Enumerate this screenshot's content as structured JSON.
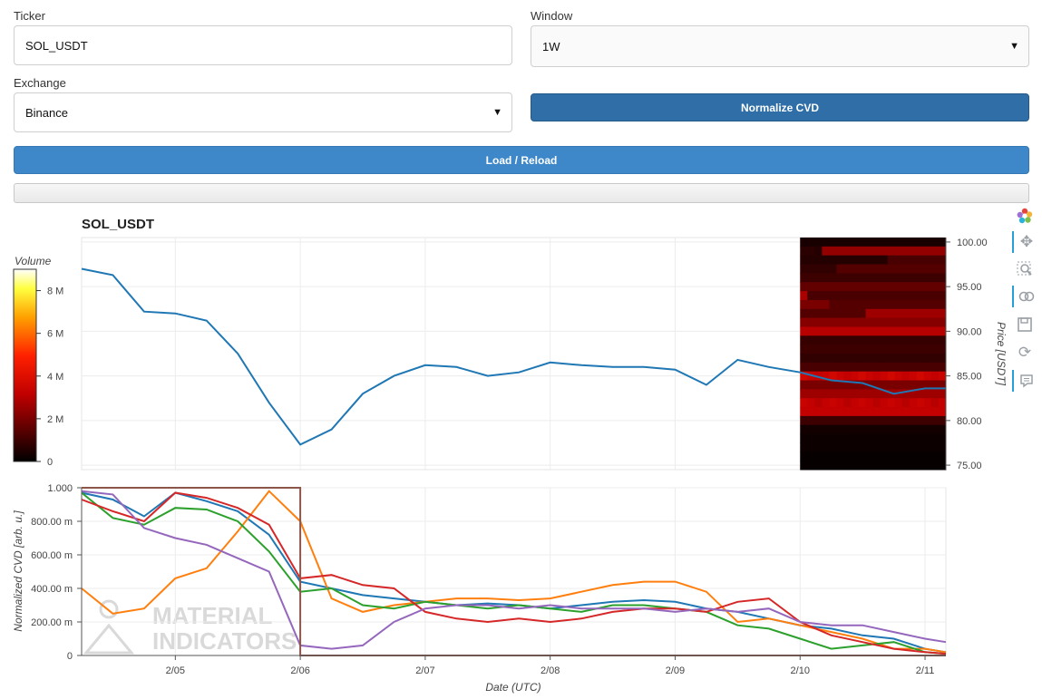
{
  "form": {
    "ticker_label": "Ticker",
    "ticker_value": "SOL_USDT",
    "window_label": "Window",
    "window_value": "1W",
    "exchange_label": "Exchange",
    "exchange_value": "Binance",
    "normalize_label": "Normalize CVD",
    "load_label": "Load / Reload"
  },
  "toolbar": {
    "tools": [
      "logo-icon",
      "pan-icon",
      "box-zoom-icon",
      "wheel-zoom-icon",
      "save-icon",
      "reset-icon",
      "hover-icon"
    ]
  },
  "colors": {
    "price_line": "#1f77b4",
    "cvd_series": [
      "#1f77b4",
      "#ff7f0e",
      "#2ca02c",
      "#d62728",
      "#9467bd",
      "#8c564b"
    ],
    "button_dark": "#2f6ea6",
    "button_light": "#3e88c9"
  },
  "watermark": {
    "line1": "MATERIAL",
    "line2": "INDICATORS"
  },
  "chart_data": [
    {
      "type": "line",
      "title": "SOL_USDT",
      "ylabel": "Price [USDT]",
      "ylim": [
        74.5,
        100.5
      ],
      "yticks": [
        "100.00",
        "95.00",
        "90.00",
        "85.00",
        "80.00",
        "75.00"
      ],
      "grid": true,
      "x": [
        "2/04 06:00",
        "2/04 12:00",
        "2/04 18:00",
        "2/05 00:00",
        "2/05 06:00",
        "2/05 12:00",
        "2/05 18:00",
        "2/06 00:00",
        "2/06 06:00",
        "2/06 12:00",
        "2/06 18:00",
        "2/07 00:00",
        "2/07 06:00",
        "2/07 12:00",
        "2/07 18:00",
        "2/08 00:00",
        "2/08 06:00",
        "2/08 12:00",
        "2/08 18:00",
        "2/09 00:00",
        "2/09 06:00",
        "2/09 12:00",
        "2/09 18:00",
        "2/10 00:00",
        "2/10 06:00",
        "2/10 12:00",
        "2/10 18:00",
        "2/11 00:00",
        "2/11 04:00"
      ],
      "series": [
        {
          "values": [
            97.0,
            96.3,
            92.2,
            92.0,
            91.2,
            87.5,
            82.0,
            77.3,
            79.0,
            83.0,
            85.0,
            86.2,
            86.0,
            85.0,
            85.4,
            86.5,
            86.2,
            86.0,
            86.0,
            85.7,
            84.0,
            86.8,
            86.0,
            85.4,
            84.5,
            84.2,
            83.0,
            83.6,
            83.6
          ]
        }
      ],
      "heatmap": {
        "colorbar_label": "Volume",
        "colorbar_ticks": [
          "8 M",
          "6 M",
          "4 M",
          "2 M",
          "0"
        ],
        "colorbar_range": [
          0,
          9
        ],
        "time_start": "2/10 00:00",
        "time_end": "2/11 04:00",
        "price_low": 74.5,
        "price_high": 100.5,
        "price_bin": 1.0,
        "time_bins": 20,
        "volumes": [
          [
            0.4,
            0.4,
            0.4,
            0.4,
            0.4,
            0.4,
            0.4,
            0.4,
            0.4,
            0.4,
            0.4,
            0.4,
            0.4,
            0.4,
            0.4,
            0.4,
            0.4,
            0.4,
            0.4,
            0.4
          ],
          [
            0.7,
            0.7,
            0.6,
            2.4,
            2.4,
            2.4,
            2.4,
            2.4,
            2.4,
            2.4,
            2.4,
            2.4,
            2.4,
            2.4,
            2.4,
            2.4,
            2.4,
            2.4,
            2.4,
            2.4
          ],
          [
            0.6,
            0.6,
            0.6,
            0.6,
            0.6,
            0.6,
            0.6,
            0.6,
            0.6,
            0.6,
            0.6,
            0.6,
            1.2,
            1.2,
            1.2,
            1.2,
            1.2,
            1.2,
            1.2,
            1.2
          ],
          [
            0.8,
            0.8,
            0.8,
            0.8,
            0.8,
            1.4,
            1.4,
            1.4,
            1.4,
            1.4,
            1.4,
            1.4,
            1.4,
            1.4,
            1.4,
            1.4,
            1.4,
            1.4,
            1.4,
            1.4
          ],
          [
            1.0,
            1.0,
            1.0,
            1.0,
            1.0,
            1.0,
            1.0,
            1.0,
            1.0,
            1.0,
            1.0,
            1.0,
            1.0,
            1.0,
            1.0,
            1.0,
            1.0,
            1.0,
            1.0,
            1.0
          ],
          [
            1.6,
            1.6,
            1.6,
            1.6,
            1.6,
            1.6,
            1.6,
            1.6,
            1.6,
            1.6,
            1.6,
            1.6,
            1.6,
            1.6,
            1.6,
            1.6,
            1.6,
            1.6,
            1.6,
            1.6
          ],
          [
            2.8,
            1.2,
            1.2,
            1.2,
            1.2,
            1.2,
            1.2,
            1.2,
            1.2,
            1.2,
            1.2,
            1.2,
            1.2,
            1.2,
            1.2,
            1.2,
            1.2,
            1.2,
            1.2,
            1.2
          ],
          [
            2.0,
            2.0,
            2.0,
            2.0,
            1.4,
            1.4,
            1.4,
            1.4,
            1.4,
            1.4,
            1.4,
            1.4,
            1.4,
            1.4,
            1.4,
            1.4,
            1.4,
            1.4,
            1.4,
            1.4
          ],
          [
            1.4,
            1.4,
            1.4,
            1.4,
            1.4,
            1.4,
            1.4,
            1.4,
            1.4,
            2.6,
            2.6,
            2.6,
            2.6,
            2.6,
            2.6,
            2.6,
            2.6,
            2.6,
            2.6,
            2.6
          ],
          [
            2.2,
            2.2,
            2.2,
            2.2,
            2.2,
            2.2,
            2.2,
            2.2,
            2.2,
            2.2,
            2.2,
            2.2,
            2.2,
            2.2,
            2.2,
            2.2,
            2.2,
            2.2,
            2.2,
            2.2
          ],
          [
            3.0,
            3.0,
            3.0,
            3.0,
            3.0,
            3.0,
            3.0,
            3.0,
            3.0,
            3.0,
            3.0,
            3.0,
            3.0,
            3.0,
            3.0,
            3.0,
            3.0,
            3.0,
            3.0,
            3.0
          ],
          [
            0.9,
            0.9,
            0.9,
            0.9,
            0.9,
            0.9,
            0.9,
            0.9,
            0.9,
            0.9,
            0.9,
            0.9,
            0.9,
            0.9,
            0.9,
            0.9,
            0.9,
            0.9,
            0.9,
            0.9
          ],
          [
            1.0,
            1.0,
            1.0,
            1.0,
            1.0,
            1.0,
            1.0,
            1.0,
            1.0,
            1.0,
            1.0,
            1.0,
            1.0,
            1.0,
            1.0,
            1.0,
            1.0,
            1.0,
            1.0,
            1.0
          ],
          [
            0.8,
            0.8,
            0.8,
            0.8,
            0.8,
            0.8,
            0.8,
            0.8,
            0.8,
            0.8,
            0.8,
            0.8,
            0.8,
            0.8,
            0.8,
            0.8,
            0.8,
            0.8,
            0.8,
            0.8
          ],
          [
            1.2,
            1.2,
            1.2,
            1.2,
            1.2,
            1.2,
            1.2,
            1.2,
            1.2,
            1.2,
            1.2,
            1.2,
            1.2,
            1.2,
            1.2,
            1.2,
            1.2,
            1.2,
            1.2,
            1.2
          ],
          [
            3.6,
            3.4,
            3.2,
            3.4,
            3.6,
            3.4,
            3.2,
            3.4,
            3.6,
            3.4,
            3.2,
            3.4,
            3.6,
            3.4,
            3.2,
            3.4,
            3.6,
            3.4,
            3.2,
            3.4
          ],
          [
            2.0,
            2.0,
            2.0,
            2.0,
            2.0,
            2.0,
            2.0,
            2.0,
            2.0,
            2.0,
            2.0,
            2.0,
            2.0,
            2.0,
            2.0,
            2.0,
            2.0,
            2.0,
            2.0,
            2.0
          ],
          [
            2.6,
            2.6,
            2.6,
            2.6,
            2.6,
            2.6,
            2.6,
            2.6,
            2.6,
            2.6,
            2.6,
            2.6,
            2.6,
            2.6,
            2.6,
            2.6,
            2.6,
            2.6,
            2.6,
            2.6
          ],
          [
            3.4,
            3.2,
            3.0,
            3.2,
            3.4,
            3.2,
            3.0,
            3.2,
            3.4,
            3.2,
            3.0,
            3.2,
            3.4,
            3.2,
            3.0,
            3.2,
            3.4,
            3.2,
            3.0,
            3.2
          ],
          [
            3.2,
            3.2,
            3.2,
            3.2,
            3.2,
            3.2,
            3.2,
            3.2,
            3.2,
            3.2,
            3.2,
            3.2,
            3.2,
            3.2,
            3.2,
            3.2,
            3.2,
            3.2,
            3.2,
            3.2
          ],
          [
            1.0,
            1.0,
            1.0,
            1.0,
            1.0,
            1.0,
            1.0,
            1.0,
            1.0,
            1.0,
            1.0,
            1.0,
            1.0,
            1.0,
            1.0,
            1.0,
            1.0,
            1.0,
            1.0,
            1.0
          ],
          [
            0.3,
            0.3,
            0.3,
            0.3,
            0.3,
            0.3,
            0.3,
            0.3,
            0.3,
            0.3,
            0.3,
            0.3,
            0.3,
            0.3,
            0.3,
            0.3,
            0.3,
            0.3,
            0.3,
            0.3
          ],
          [
            0.2,
            0.2,
            0.2,
            0.2,
            0.2,
            0.2,
            0.2,
            0.2,
            0.2,
            0.2,
            0.2,
            0.2,
            0.2,
            0.2,
            0.2,
            0.2,
            0.2,
            0.2,
            0.2,
            0.2
          ],
          [
            0.2,
            0.2,
            0.2,
            0.2,
            0.2,
            0.2,
            0.2,
            0.2,
            0.2,
            0.2,
            0.2,
            0.2,
            0.2,
            0.2,
            0.2,
            0.2,
            0.2,
            0.2,
            0.2,
            0.2
          ],
          [
            0.1,
            0.1,
            0.1,
            0.1,
            0.1,
            0.1,
            0.1,
            0.1,
            0.1,
            0.1,
            0.1,
            0.1,
            0.1,
            0.1,
            0.1,
            0.1,
            0.1,
            0.1,
            0.1,
            0.1
          ],
          [
            0.1,
            0.1,
            0.1,
            0.1,
            0.1,
            0.1,
            0.1,
            0.1,
            0.1,
            0.1,
            0.1,
            0.1,
            0.1,
            0.1,
            0.1,
            0.1,
            0.1,
            0.1,
            0.1,
            0.1
          ]
        ]
      }
    },
    {
      "type": "line",
      "xlabel": "Date (UTC)",
      "ylabel": "Normalized CVD [arb. u.]",
      "ylim": [
        0,
        1.0
      ],
      "yticks": [
        "1.000",
        "800.00 m",
        "600.00 m",
        "400.00 m",
        "200.00 m",
        "0"
      ],
      "xticks": [
        "2/05",
        "2/06",
        "2/07",
        "2/08",
        "2/09",
        "2/10",
        "2/11"
      ],
      "grid": true,
      "x": [
        "2/04 06:00",
        "2/04 12:00",
        "2/04 18:00",
        "2/05 00:00",
        "2/05 06:00",
        "2/05 12:00",
        "2/05 18:00",
        "2/06 00:00",
        "2/06 06:00",
        "2/06 12:00",
        "2/06 18:00",
        "2/07 00:00",
        "2/07 06:00",
        "2/07 12:00",
        "2/07 18:00",
        "2/08 00:00",
        "2/08 06:00",
        "2/08 12:00",
        "2/08 18:00",
        "2/09 00:00",
        "2/09 06:00",
        "2/09 12:00",
        "2/09 18:00",
        "2/10 00:00",
        "2/10 06:00",
        "2/10 12:00",
        "2/10 18:00",
        "2/11 00:00",
        "2/11 04:00"
      ],
      "series": [
        {
          "values": [
            0.97,
            0.93,
            0.83,
            0.97,
            0.92,
            0.86,
            0.72,
            0.44,
            0.4,
            0.36,
            0.34,
            0.32,
            0.3,
            0.31,
            0.3,
            0.28,
            0.3,
            0.32,
            0.33,
            0.32,
            0.28,
            0.26,
            0.22,
            0.18,
            0.16,
            0.12,
            0.1,
            0.04,
            0.02
          ]
        },
        {
          "values": [
            0.4,
            0.25,
            0.28,
            0.46,
            0.52,
            0.74,
            0.98,
            0.8,
            0.34,
            0.26,
            0.3,
            0.32,
            0.34,
            0.34,
            0.33,
            0.34,
            0.38,
            0.42,
            0.44,
            0.44,
            0.38,
            0.2,
            0.22,
            0.18,
            0.14,
            0.1,
            0.04,
            0.04,
            0.02
          ]
        },
        {
          "values": [
            0.97,
            0.82,
            0.78,
            0.88,
            0.87,
            0.8,
            0.62,
            0.38,
            0.4,
            0.3,
            0.28,
            0.32,
            0.3,
            0.28,
            0.3,
            0.28,
            0.26,
            0.3,
            0.3,
            0.28,
            0.26,
            0.18,
            0.16,
            0.1,
            0.04,
            0.06,
            0.08,
            0.02,
            0.01
          ]
        },
        {
          "values": [
            0.93,
            0.86,
            0.8,
            0.97,
            0.94,
            0.88,
            0.78,
            0.46,
            0.48,
            0.42,
            0.4,
            0.26,
            0.22,
            0.2,
            0.22,
            0.2,
            0.22,
            0.26,
            0.28,
            0.28,
            0.26,
            0.32,
            0.34,
            0.2,
            0.12,
            0.08,
            0.04,
            0.02,
            0.01
          ]
        },
        {
          "values": [
            0.98,
            0.96,
            0.76,
            0.7,
            0.66,
            0.58,
            0.5,
            0.06,
            0.04,
            0.06,
            0.2,
            0.28,
            0.3,
            0.3,
            0.28,
            0.3,
            0.28,
            0.28,
            0.28,
            0.26,
            0.28,
            0.26,
            0.28,
            0.2,
            0.18,
            0.18,
            0.14,
            0.1,
            0.08
          ]
        },
        {
          "values": [
            1.0,
            1.0,
            1.0,
            1.0,
            1.0,
            1.0,
            1.0,
            0.0,
            0.0,
            0.0,
            0.0,
            0.0,
            0.0,
            0.0,
            0.0,
            0.0,
            0.0,
            0.0,
            0.0,
            0.0,
            0.0,
            0.0,
            0.0,
            0.0,
            0.0,
            0.0,
            0.0,
            0.0,
            0.0
          ]
        }
      ]
    }
  ]
}
